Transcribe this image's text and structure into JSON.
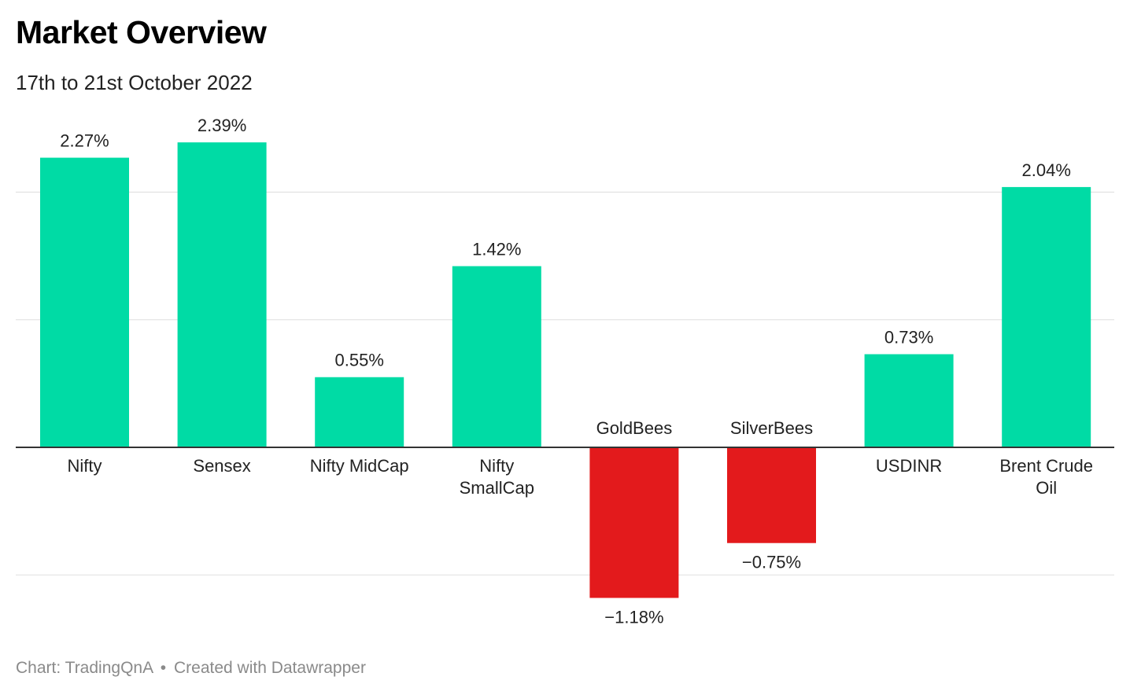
{
  "title": "Market Overview",
  "subtitle": "17th to 21st October 2022",
  "footer": {
    "source": "Chart: TradingQnA",
    "separator": "•",
    "credit": "Created with Datawrapper"
  },
  "colors": {
    "positive": "#00dba5",
    "negative": "#e31a1c",
    "grid": "#e2e2e2",
    "baseline": "#333333"
  },
  "chart_data": {
    "type": "bar",
    "categories": [
      "Nifty",
      "Sensex",
      "Nifty MidCap",
      "Nifty SmallCap",
      "GoldBees",
      "SilverBees",
      "USDINR",
      "Brent Crude Oil"
    ],
    "category_lines": [
      [
        "Nifty"
      ],
      [
        "Sensex"
      ],
      [
        "Nifty MidCap"
      ],
      [
        "Nifty",
        "SmallCap"
      ],
      [
        "GoldBees"
      ],
      [
        "SilverBees"
      ],
      [
        "USDINR"
      ],
      [
        "Brent Crude",
        "Oil"
      ]
    ],
    "values": [
      2.27,
      2.39,
      0.55,
      1.42,
      -1.18,
      -0.75,
      0.73,
      2.04
    ],
    "value_labels": [
      "2.27%",
      "2.39%",
      "0.55%",
      "1.42%",
      "−1.18%",
      "−0.75%",
      "0.73%",
      "2.04%"
    ],
    "ylim": [
      -1.18,
      2.39
    ],
    "gridlines": [
      -1,
      1,
      2
    ],
    "grid": true,
    "legend": false,
    "xlabel": "",
    "ylabel": ""
  }
}
